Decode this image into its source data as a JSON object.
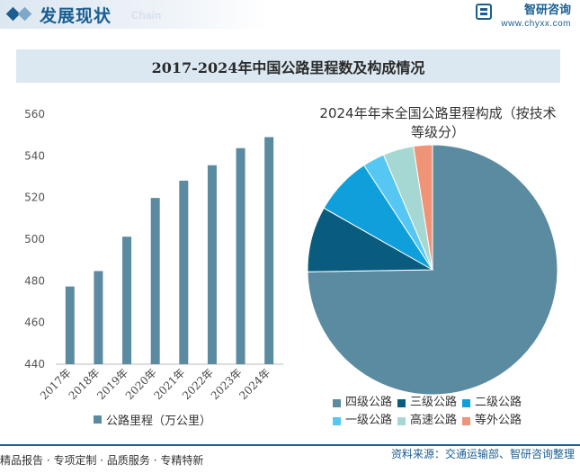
{
  "header": {
    "title": "发展现状",
    "subtitle": "Chain",
    "logo_name": "智研咨询",
    "logo_url": "www.chyxx.com"
  },
  "main_title": "2017-2024年中国公路里程数及构成情况",
  "footer": {
    "left_text": "精品报告 · 专项定制 · 品质服务 · 专精特新",
    "source": "资料来源：交通运输部、智研咨询整理"
  },
  "chart_data": [
    {
      "type": "bar",
      "title": "",
      "categories": [
        "2017年",
        "2018年",
        "2019年",
        "2020年",
        "2021年",
        "2022年",
        "2023年",
        "2024年"
      ],
      "values": [
        477.3,
        484.7,
        501.2,
        519.8,
        528.1,
        535.5,
        543.7,
        549.0
      ],
      "series_name": "公路里程（万公里）",
      "ylim": [
        440,
        560
      ],
      "yticks": [
        440,
        460,
        480,
        500,
        520,
        540,
        560
      ],
      "color": "#5b8ba1",
      "legend_position": "bottom"
    },
    {
      "type": "pie",
      "title": "2024年年末全国公路里程构成（按技术等级分）",
      "categories": [
        "四级公路",
        "三级公路",
        "二级公路",
        "一级公路",
        "高速公路",
        "等外公路"
      ],
      "values": [
        79.3,
        9.0,
        8.0,
        3.0,
        4.2,
        2.6
      ],
      "colors": [
        "#5b8ba1",
        "#0a5c7f",
        "#0fa0db",
        "#55c7f2",
        "#a6d8d3",
        "#f09478"
      ],
      "legend_position": "bottom"
    }
  ]
}
